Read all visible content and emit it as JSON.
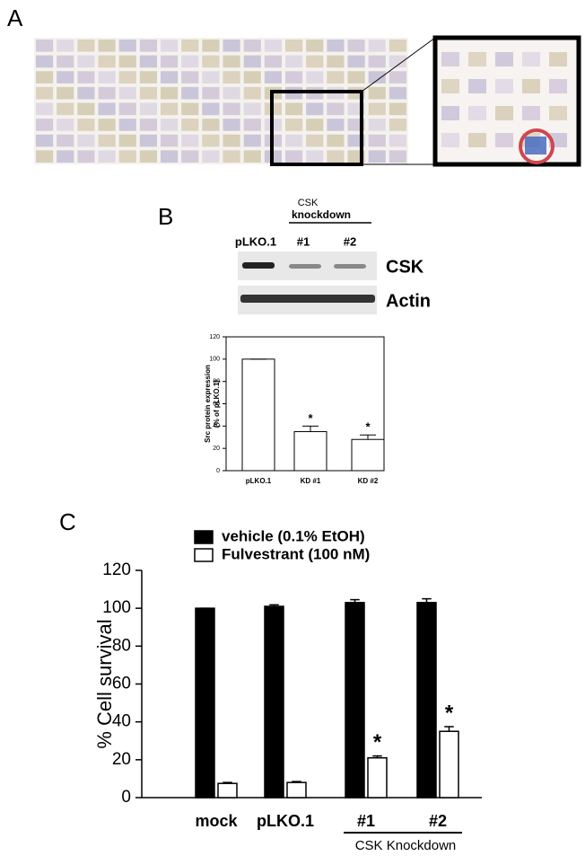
{
  "panels": {
    "a": "A",
    "b": "B",
    "c": "C"
  },
  "blot": {
    "header": "CSK",
    "subheader": "knockdown",
    "lanes": [
      "pLKO.1",
      "#1",
      "#2"
    ],
    "rows": [
      "CSK",
      "Actin"
    ]
  },
  "chart_data": [
    {
      "type": "bar",
      "ylabel": [
        "Src protein expression",
        "(% of pLKO.1)"
      ],
      "categories": [
        "pLKO.1",
        "KD #1",
        "KD #2"
      ],
      "values": [
        100,
        35,
        28
      ],
      "errors": [
        0,
        5,
        4
      ],
      "significance": [
        null,
        "*",
        "*"
      ],
      "color": "#ffffff",
      "ylim": [
        0,
        120
      ],
      "yticks": [
        0,
        20,
        40,
        60,
        80,
        100,
        120
      ]
    },
    {
      "type": "bar",
      "ylabel": "% Cell survival",
      "group_label": "CSK Knockdown",
      "categories": [
        "mock",
        "pLKO.1",
        "#1",
        "#2"
      ],
      "series": [
        {
          "name": "vehicle (0.1% EtOH)",
          "color": "#000000",
          "values": [
            100,
            101,
            103,
            103
          ],
          "errors": [
            0,
            0.8,
            1.5,
            2
          ]
        },
        {
          "name": "Fulvestrant (100 nM)",
          "color": "#ffffff",
          "values": [
            7.5,
            8,
            21,
            35
          ],
          "errors": [
            0.5,
            0.5,
            1,
            2.5
          ],
          "significance": [
            null,
            null,
            "*",
            "*"
          ]
        }
      ],
      "ylim": [
        0,
        120
      ],
      "yticks": [
        0,
        20,
        40,
        60,
        80,
        100,
        120
      ]
    }
  ]
}
